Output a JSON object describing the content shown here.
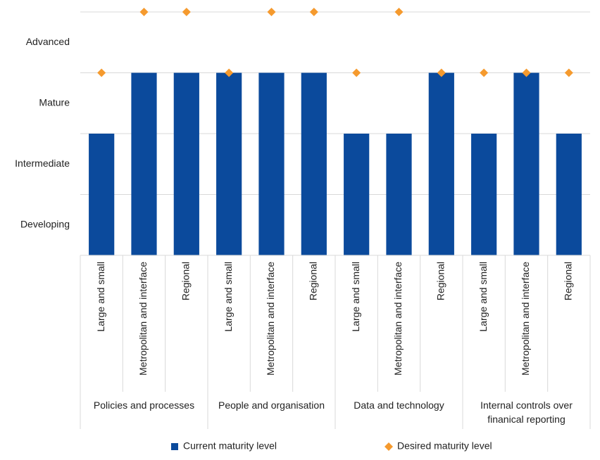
{
  "chart_data": {
    "type": "bar",
    "categories": [
      "Large and small",
      "Metropolitan and interface",
      "Regional",
      "Large and small",
      "Metropolitan and interface",
      "Regional",
      "Large and small",
      "Metropolitan and interface",
      "Regional",
      "Large and small",
      "Metropolitan and interface",
      "Regional"
    ],
    "groups": [
      "Policies and processes",
      "People and organisation",
      "Data and technology",
      "Internal controls over finanical reporting"
    ],
    "series": [
      {
        "name": "Current maturity level",
        "type": "bar",
        "color": "#0b4a9c",
        "values": [
          2,
          3,
          3,
          3,
          3,
          3,
          2,
          2,
          3,
          2,
          3,
          2
        ]
      },
      {
        "name": "Desired maturity level",
        "type": "scatter",
        "marker": "diamond",
        "color": "#f59a2e",
        "values": [
          3,
          4,
          4,
          3,
          4,
          4,
          3,
          4,
          3,
          3,
          3,
          3
        ]
      }
    ],
    "ylim": [
      0,
      4
    ],
    "yticks": [
      {
        "value": 0.5,
        "label": "Developing"
      },
      {
        "value": 1.5,
        "label": "Intermediate"
      },
      {
        "value": 2.5,
        "label": "Mature"
      },
      {
        "value": 3.5,
        "label": "Advanced"
      }
    ],
    "ygrid": [
      0,
      1,
      2,
      3,
      4
    ],
    "legend": "bottom"
  }
}
